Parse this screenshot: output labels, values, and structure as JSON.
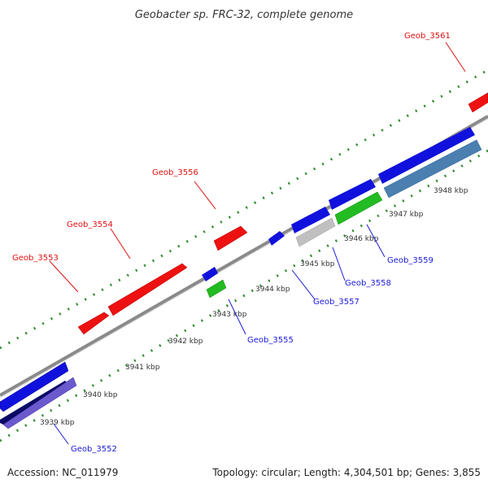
{
  "title": "Geobacter sp. FRC-32, complete genome",
  "footer": {
    "accession": "Accession: NC_011979",
    "summary": "Topology: circular; Length: 4,304,501 bp; Genes: 3,855"
  },
  "colors": {
    "backbone": "#8a8a8a",
    "tick": "#2d8a2d",
    "red": "#ee1111",
    "blue": "#1111dd",
    "green": "#22bb22",
    "grey": "#c0c0c0",
    "steelblue": "#4a7fb0",
    "navy": "#0a0a66",
    "purple": "#6a5acd",
    "label_up": "#e01010",
    "label_down": "#1a1ad6"
  },
  "ticks": [
    "3939 kbp",
    "3940 kbp",
    "3941 kbp",
    "3942 kbp",
    "3943 kbp",
    "3944 kbp",
    "3945 kbp",
    "3946 kbp",
    "3947 kbp",
    "3948 kbp"
  ],
  "genes": [
    {
      "id": "Geob_3553",
      "strand": "+",
      "color": "red",
      "label": "Geob_3553"
    },
    {
      "id": "Geob_3554",
      "strand": "+",
      "color": "red",
      "label": "Geob_3554"
    },
    {
      "id": "Geob_3556",
      "strand": "+",
      "color": "red",
      "label": "Geob_3556"
    },
    {
      "id": "Geob_3561",
      "strand": "+",
      "color": "red",
      "label": "Geob_3561"
    },
    {
      "id": "Geob_3552",
      "strand": "-",
      "color": "purple",
      "label": "Geob_3552"
    },
    {
      "id": "Geob_3555",
      "strand": "-",
      "color": "green",
      "label": "Geob_3555"
    },
    {
      "id": "Geob_3557",
      "strand": "-",
      "color": "blue",
      "label": "Geob_3557"
    },
    {
      "id": "Geob_3558",
      "strand": "-",
      "color": "grey",
      "label": "Geob_3558"
    },
    {
      "id": "Geob_3559",
      "strand": "-",
      "color": "green",
      "label": "Geob_3559"
    }
  ]
}
